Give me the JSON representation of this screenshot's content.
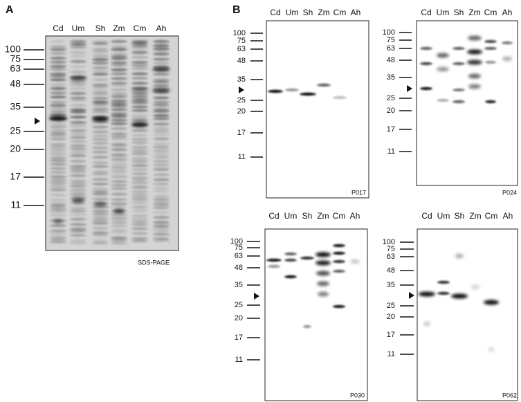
{
  "panel_a": {
    "label": "A",
    "lanes": [
      "Cd",
      "Um",
      "Sh",
      "Zm",
      "Cm",
      "Ah"
    ],
    "markers": [
      "100",
      "75",
      "63",
      "48",
      "35",
      "25",
      "20",
      "17",
      "11"
    ],
    "caption": "SDS-PAGE"
  },
  "panel_b": {
    "label": "B",
    "blots": [
      {
        "lanes": [
          "Cd",
          "Um",
          "Sh",
          "Zm",
          "Cm",
          "Ah"
        ],
        "markers": [
          "100",
          "75",
          "63",
          "48",
          "35",
          "25",
          "20",
          "17",
          "11"
        ],
        "caption": "P017"
      },
      {
        "lanes": [
          "Cd",
          "Um",
          "Sh",
          "Zm",
          "Cm",
          "Ah"
        ],
        "markers": [
          "100",
          "75",
          "63",
          "48",
          "35",
          "25",
          "20",
          "17",
          "11"
        ],
        "caption": "P024"
      },
      {
        "lanes": [
          "Cd",
          "Um",
          "Sh",
          "Zm",
          "Cm",
          "Ah"
        ],
        "markers": [
          "100",
          "75",
          "63",
          "48",
          "35",
          "25",
          "20",
          "17",
          "11"
        ],
        "caption": "P030"
      },
      {
        "lanes": [
          "Cd",
          "Um",
          "Sh",
          "Zm",
          "Cm",
          "Ah"
        ],
        "markers": [
          "100",
          "75",
          "63",
          "48",
          "35",
          "25",
          "20",
          "17",
          "11"
        ],
        "caption": "P062"
      }
    ]
  }
}
